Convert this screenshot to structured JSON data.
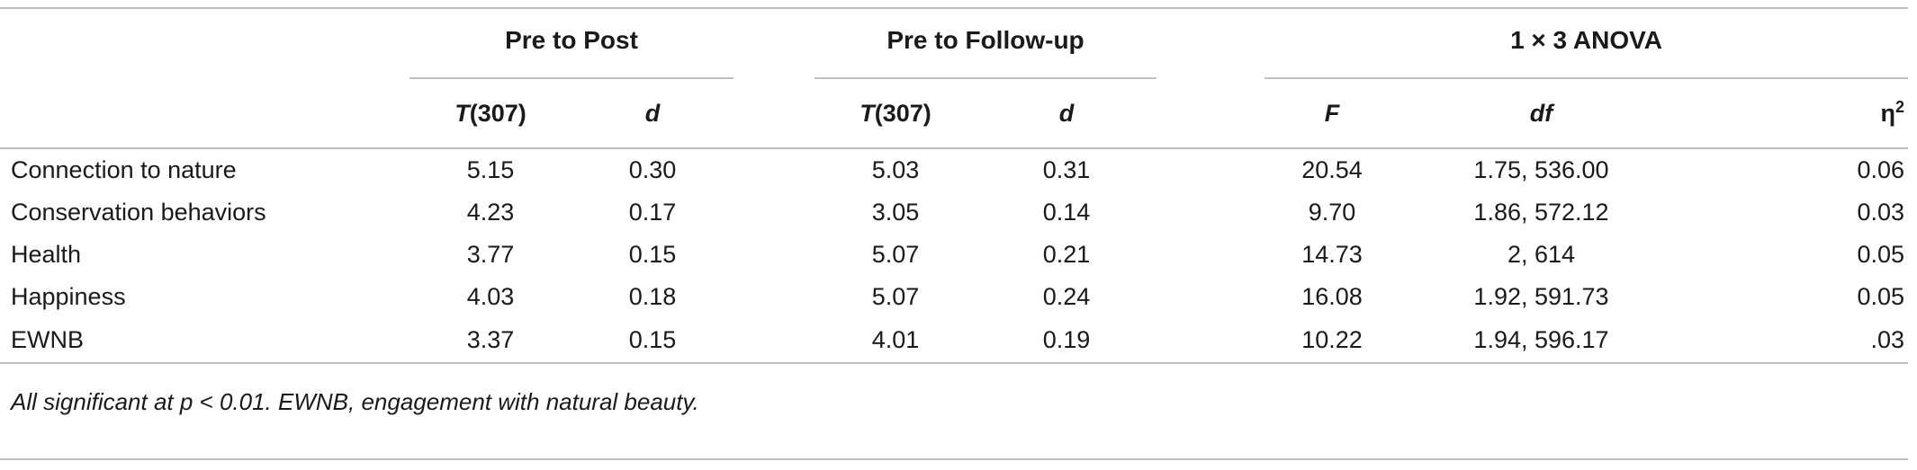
{
  "table": {
    "groups": [
      {
        "label": "Pre to Post"
      },
      {
        "label": "Pre to Follow-up"
      },
      {
        "label": "1 × 3 ANOVA"
      }
    ],
    "subheaders": {
      "t_pre_post_italic": "T",
      "t_pre_post_df": "(307)",
      "d_pre_post": "d",
      "t_pre_follow_italic": "T",
      "t_pre_follow_df": "(307)",
      "d_pre_follow": "d",
      "f": "F",
      "df": "df",
      "eta_symbol": "η",
      "eta_sup": "2"
    },
    "rows": [
      {
        "label": "Connection to nature",
        "t1": "5.15",
        "d1": "0.30",
        "t2": "5.03",
        "d2": "0.31",
        "f": "20.54",
        "df": "1.75, 536.00",
        "eta": "0.06"
      },
      {
        "label": "Conservation behaviors",
        "t1": "4.23",
        "d1": "0.17",
        "t2": "3.05",
        "d2": "0.14",
        "f": "9.70",
        "df": "1.86, 572.12",
        "eta": "0.03"
      },
      {
        "label": "Health",
        "t1": "3.77",
        "d1": "0.15",
        "t2": "5.07",
        "d2": "0.21",
        "f": "14.73",
        "df": "2, 614",
        "eta": "0.05"
      },
      {
        "label": "Happiness",
        "t1": "4.03",
        "d1": "0.18",
        "t2": "5.07",
        "d2": "0.24",
        "f": "16.08",
        "df": "1.92, 591.73",
        "eta": "0.05"
      },
      {
        "label": "EWNB",
        "t1": "3.37",
        "d1": "0.15",
        "t2": "4.01",
        "d2": "0.19",
        "f": "10.22",
        "df": "1.94, 596.17",
        "eta": ".03"
      }
    ],
    "footnote": "All significant at p < 0.01. EWNB, engagement with natural beauty."
  }
}
